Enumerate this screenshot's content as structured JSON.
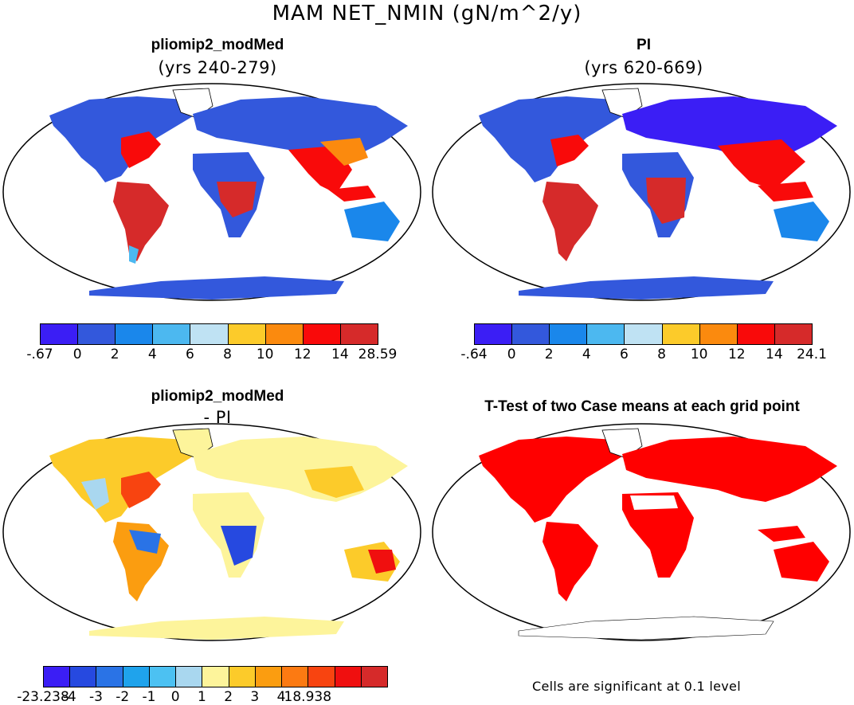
{
  "figure": {
    "title": "MAM NET_NMIN (gN/m^2/y)",
    "footnote": "Cells are significant at 0.1 level"
  },
  "panels": {
    "top_left": {
      "title": "pliomip2_modMed",
      "subtitle": "(yrs 240-279)",
      "colorbar": {
        "colors": [
          "#3b1ef5",
          "#3358dc",
          "#1a87eb",
          "#4cb8f0",
          "#bfe2f3",
          "#fccb2a",
          "#fb8a0e",
          "#f90a0a",
          "#d62a2a"
        ],
        "ticks": [
          "-.67",
          "0",
          "2",
          "4",
          "6",
          "8",
          "10",
          "12",
          "14",
          "28.59"
        ]
      }
    },
    "top_right": {
      "title": "PI",
      "subtitle": "(yrs 620-669)",
      "colorbar": {
        "colors": [
          "#3b1ef5",
          "#3358dc",
          "#1a87eb",
          "#4cb8f0",
          "#bfe2f3",
          "#fccb2a",
          "#fb8a0e",
          "#f90a0a",
          "#d62a2a"
        ],
        "ticks": [
          "-.64",
          "0",
          "2",
          "4",
          "6",
          "8",
          "10",
          "12",
          "14",
          "24.1"
        ]
      }
    },
    "bottom_left": {
      "title": "pliomip2_modMed",
      "subtitle": "- PI",
      "colorbar": {
        "colors": [
          "#3b1ef5",
          "#2649e0",
          "#2a73e6",
          "#1fa3ec",
          "#4cc1f2",
          "#a9d7ef",
          "#fdf49b",
          "#fccb2a",
          "#fb9d10",
          "#fc7a12",
          "#f84410",
          "#f00f0f",
          "#d62a2a"
        ],
        "ticks": [
          "-23.238",
          "-4",
          "-3",
          "-2",
          "-1",
          "0",
          "1",
          "2",
          "3",
          "4",
          "18.938"
        ]
      }
    },
    "bottom_right": {
      "title": "T-Test of two Case means at each grid point",
      "significant_color": "#ff0000"
    }
  }
}
